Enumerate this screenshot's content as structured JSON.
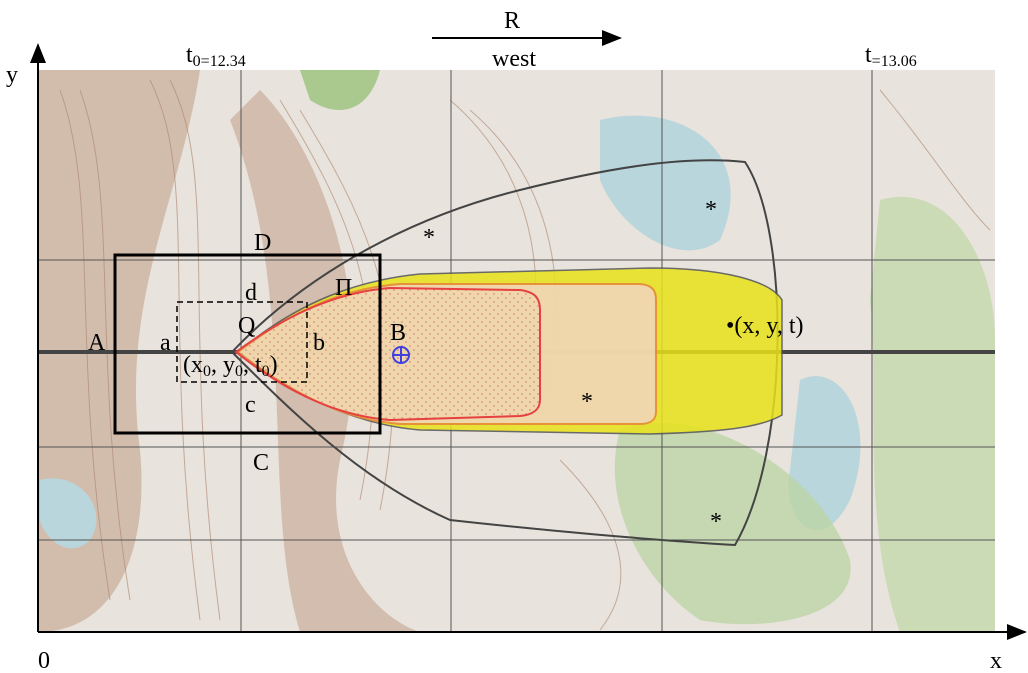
{
  "axes": {
    "y": "y",
    "x": "x",
    "origin": "0"
  },
  "direction": {
    "label": "R",
    "sublabel": "west"
  },
  "times": {
    "start": {
      "symbol": "t",
      "value": "0=12.34"
    },
    "end": {
      "symbol": "t",
      "value": "=13.06"
    }
  },
  "labels": {
    "D": "D",
    "d": "d",
    "Q": "Q",
    "a": "a",
    "A": "A",
    "b": "b",
    "B": "B",
    "c": "c",
    "C": "C",
    "Pi": "Π"
  },
  "start_point": {
    "parts": [
      "(x",
      "0",
      ", y",
      "0",
      ", t",
      "0",
      ")"
    ]
  },
  "end_point": "•(x, y, t)",
  "markers": [
    "*",
    "*",
    "*",
    "*"
  ]
}
